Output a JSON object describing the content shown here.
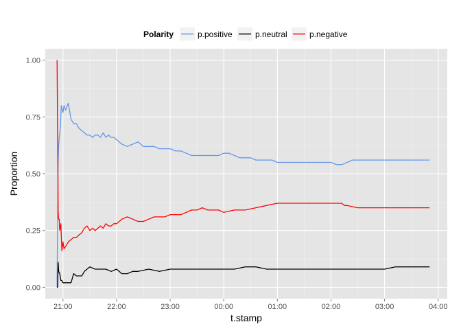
{
  "chart_data": {
    "type": "line",
    "xlabel": "t.stamp",
    "ylabel": "Proportion",
    "x_unit": "hours (clock time, 21:00 = 21)",
    "xlim": [
      20.67,
      28.17
    ],
    "ylim": [
      -0.05,
      1.05
    ],
    "x_ticks": [
      {
        "value": 21,
        "label": "21:00"
      },
      {
        "value": 22,
        "label": "22:00"
      },
      {
        "value": 23,
        "label": "23:00"
      },
      {
        "value": 24,
        "label": "00:00"
      },
      {
        "value": 25,
        "label": "01:00"
      },
      {
        "value": 26,
        "label": "02:00"
      },
      {
        "value": 27,
        "label": "03:00"
      },
      {
        "value": 28,
        "label": "04:00"
      }
    ],
    "y_ticks": [
      {
        "value": 0.0,
        "label": "0.00"
      },
      {
        "value": 0.25,
        "label": "0.25"
      },
      {
        "value": 0.5,
        "label": "0.50"
      },
      {
        "value": 0.75,
        "label": "0.75"
      },
      {
        "value": 1.0,
        "label": "1.00"
      }
    ],
    "grid": true,
    "background": "#e5e5e5",
    "legend": {
      "position": "top",
      "title": "Polarity",
      "entries": [
        {
          "label": "p.positive",
          "color": "#6495ed"
        },
        {
          "label": "p.neutral",
          "color": "#000000"
        },
        {
          "label": "p.negative",
          "color": "#ff0000"
        }
      ]
    },
    "series": [
      {
        "name": "p.positive",
        "color": "#6495ed",
        "x": [
          20.89,
          20.9,
          20.91,
          20.92,
          20.93,
          20.95,
          20.97,
          21.0,
          21.02,
          21.05,
          21.1,
          21.15,
          21.2,
          21.25,
          21.3,
          21.35,
          21.4,
          21.45,
          21.5,
          21.55,
          21.6,
          21.65,
          21.7,
          21.75,
          21.8,
          21.85,
          21.9,
          21.95,
          22.0,
          22.1,
          22.2,
          22.3,
          22.4,
          22.5,
          22.6,
          22.7,
          22.8,
          22.9,
          23.0,
          23.1,
          23.2,
          23.3,
          23.4,
          23.5,
          23.6,
          23.7,
          23.8,
          23.9,
          24.0,
          24.1,
          24.2,
          24.3,
          24.4,
          24.5,
          24.6,
          24.7,
          24.8,
          24.9,
          25.0,
          25.2,
          25.4,
          25.6,
          25.8,
          26.0,
          26.1,
          26.2,
          26.3,
          26.4,
          26.6,
          26.8,
          27.0,
          27.2,
          27.4,
          27.6,
          27.84
        ],
        "y": [
          0.0,
          0.33,
          0.56,
          0.62,
          0.66,
          0.7,
          0.8,
          0.77,
          0.8,
          0.78,
          0.81,
          0.74,
          0.72,
          0.72,
          0.7,
          0.69,
          0.68,
          0.67,
          0.67,
          0.66,
          0.67,
          0.67,
          0.66,
          0.68,
          0.66,
          0.67,
          0.66,
          0.66,
          0.65,
          0.63,
          0.62,
          0.63,
          0.64,
          0.62,
          0.62,
          0.62,
          0.61,
          0.61,
          0.61,
          0.6,
          0.6,
          0.59,
          0.58,
          0.58,
          0.58,
          0.58,
          0.58,
          0.58,
          0.59,
          0.59,
          0.58,
          0.57,
          0.57,
          0.57,
          0.56,
          0.56,
          0.56,
          0.56,
          0.55,
          0.55,
          0.55,
          0.55,
          0.55,
          0.55,
          0.54,
          0.54,
          0.55,
          0.56,
          0.56,
          0.56,
          0.56,
          0.56,
          0.56,
          0.56,
          0.56
        ]
      },
      {
        "name": "p.neutral",
        "color": "#000000",
        "x": [
          20.89,
          20.9,
          20.91,
          20.92,
          20.94,
          20.96,
          20.98,
          21.0,
          21.05,
          21.1,
          21.15,
          21.2,
          21.25,
          21.3,
          21.35,
          21.4,
          21.45,
          21.5,
          21.6,
          21.7,
          21.8,
          21.9,
          22.0,
          22.1,
          22.2,
          22.3,
          22.4,
          22.6,
          22.8,
          23.0,
          23.2,
          23.4,
          23.6,
          23.8,
          24.0,
          24.2,
          24.4,
          24.6,
          24.8,
          25.0,
          25.2,
          25.4,
          25.6,
          25.8,
          26.0,
          26.2,
          26.4,
          26.6,
          26.8,
          27.0,
          27.2,
          27.4,
          27.6,
          27.84
        ],
        "y": [
          0.0,
          0.0,
          0.11,
          0.07,
          0.06,
          0.03,
          0.03,
          0.02,
          0.02,
          0.02,
          0.02,
          0.06,
          0.05,
          0.05,
          0.05,
          0.07,
          0.08,
          0.09,
          0.08,
          0.08,
          0.08,
          0.07,
          0.08,
          0.06,
          0.06,
          0.07,
          0.07,
          0.08,
          0.07,
          0.08,
          0.08,
          0.08,
          0.08,
          0.08,
          0.08,
          0.08,
          0.09,
          0.09,
          0.08,
          0.08,
          0.08,
          0.08,
          0.08,
          0.08,
          0.08,
          0.08,
          0.08,
          0.08,
          0.08,
          0.08,
          0.09,
          0.09,
          0.09,
          0.09
        ]
      },
      {
        "name": "p.negative",
        "color": "#ff0000",
        "x": [
          20.89,
          20.9,
          20.91,
          20.92,
          20.93,
          20.94,
          20.96,
          20.98,
          21.0,
          21.02,
          21.05,
          21.1,
          21.15,
          21.2,
          21.25,
          21.3,
          21.35,
          21.4,
          21.45,
          21.5,
          21.55,
          21.6,
          21.65,
          21.7,
          21.75,
          21.8,
          21.85,
          21.9,
          21.95,
          22.0,
          22.1,
          22.2,
          22.3,
          22.4,
          22.5,
          22.6,
          22.7,
          22.8,
          22.9,
          23.0,
          23.1,
          23.2,
          23.3,
          23.4,
          23.5,
          23.6,
          23.7,
          23.8,
          23.9,
          24.0,
          24.2,
          24.4,
          24.6,
          24.8,
          25.0,
          25.2,
          25.4,
          25.6,
          25.8,
          26.0,
          26.2,
          26.25,
          26.3,
          26.5,
          26.7,
          26.9,
          27.1,
          27.3,
          27.5,
          27.7,
          27.84
        ],
        "y": [
          1.0,
          0.67,
          0.33,
          0.3,
          0.3,
          0.25,
          0.28,
          0.16,
          0.2,
          0.17,
          0.18,
          0.2,
          0.21,
          0.22,
          0.22,
          0.23,
          0.24,
          0.26,
          0.27,
          0.25,
          0.26,
          0.25,
          0.26,
          0.27,
          0.26,
          0.28,
          0.27,
          0.27,
          0.28,
          0.28,
          0.3,
          0.31,
          0.3,
          0.29,
          0.29,
          0.3,
          0.31,
          0.31,
          0.31,
          0.32,
          0.32,
          0.32,
          0.33,
          0.34,
          0.34,
          0.35,
          0.34,
          0.34,
          0.34,
          0.33,
          0.34,
          0.34,
          0.35,
          0.36,
          0.37,
          0.37,
          0.37,
          0.37,
          0.37,
          0.37,
          0.37,
          0.36,
          0.36,
          0.35,
          0.35,
          0.35,
          0.35,
          0.35,
          0.35,
          0.35,
          0.35
        ]
      }
    ]
  }
}
